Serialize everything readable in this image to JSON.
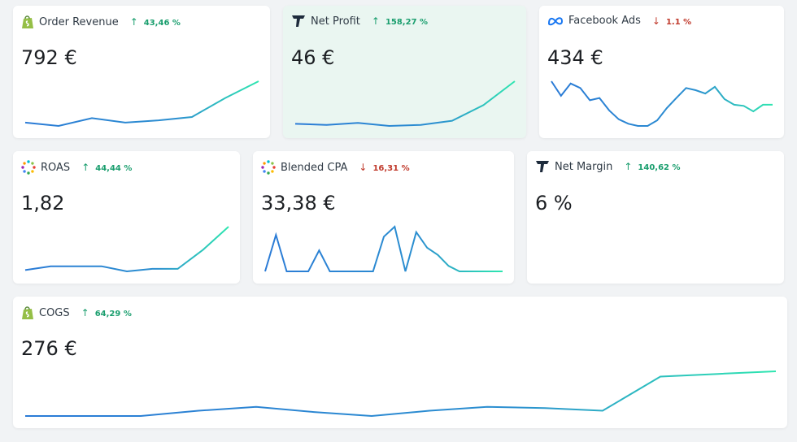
{
  "cards": [
    {
      "title": "Order Revenue",
      "icon": "shopify",
      "value": "792 €",
      "delta": "43,46 %",
      "trend": "up",
      "highlight": false,
      "spark": [
        18,
        15,
        22,
        18,
        20,
        23,
        40,
        55
      ]
    },
    {
      "title": "Net Profit",
      "icon": "triplewhale",
      "value": "46 €",
      "delta": "158,27 %",
      "trend": "up",
      "highlight": true,
      "spark": [
        12,
        11,
        13,
        10,
        11,
        15,
        30,
        53
      ]
    },
    {
      "title": "Facebook Ads",
      "icon": "meta",
      "value": "434 €",
      "delta": "1.1 %",
      "trend": "down",
      "highlight": false,
      "spark": [
        50,
        37,
        48,
        44,
        33,
        35,
        24,
        16,
        12,
        10,
        10,
        15,
        26,
        35,
        44,
        42,
        39,
        45,
        34,
        29,
        28,
        23,
        29,
        29
      ]
    },
    {
      "title": "ROAS",
      "icon": "dots",
      "value": "1,82",
      "delta": "44,44 %",
      "trend": "up",
      "highlight": false,
      "spark": [
        15,
        18,
        18,
        18,
        14,
        16,
        16,
        31,
        49
      ]
    },
    {
      "title": "Blended CPA",
      "icon": "dots",
      "value": "33,38 €",
      "delta": "16,31 %",
      "trend": "down",
      "highlight": false,
      "spark": [
        7,
        47,
        7,
        7,
        7,
        30,
        7,
        7,
        7,
        7,
        7,
        45,
        56,
        7,
        50,
        33,
        25,
        13,
        7,
        7,
        7,
        7,
        7
      ]
    },
    {
      "title": "Net Margin",
      "icon": "triplewhale",
      "value": "6 %",
      "delta": "140,62 %",
      "trend": "up",
      "highlight": false,
      "spark": []
    },
    {
      "title": "COGS",
      "icon": "shopify",
      "value": "276 €",
      "delta": "64,29 %",
      "trend": "up",
      "highlight": false,
      "spark": [
        9,
        9,
        9,
        13,
        16,
        12,
        9,
        13,
        16,
        15,
        13,
        39,
        41,
        43
      ]
    }
  ]
}
